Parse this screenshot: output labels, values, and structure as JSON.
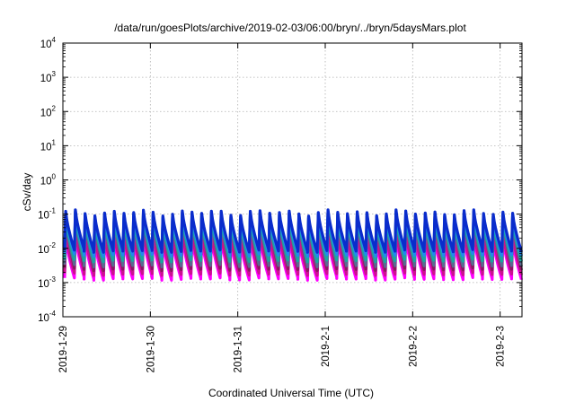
{
  "chart_data": {
    "type": "line",
    "title": "/data/run/goesPlots/archive/2019-02-03/06:00/bryn/../bryn/5daysMars.plot",
    "xlabel": "Coordinated Universal Time (UTC)",
    "ylabel": "cSv/day",
    "x_range": [
      "2019-01-29T00:00",
      "2019-02-03T06:00"
    ],
    "x_ticks": [
      "2019-1-29",
      "2019-1-30",
      "2019-1-31",
      "2019-2-1",
      "2019-2-2",
      "2019-2-3"
    ],
    "y_scale": "log",
    "ylim": [
      0.0001,
      10000
    ],
    "y_ticks": [
      {
        "base": "10",
        "exp": "-4"
      },
      {
        "base": "10",
        "exp": "-3"
      },
      {
        "base": "10",
        "exp": "-2"
      },
      {
        "base": "10",
        "exp": "-1"
      },
      {
        "base": "10",
        "exp": "0"
      },
      {
        "base": "10",
        "exp": "1"
      },
      {
        "base": "10",
        "exp": "2"
      },
      {
        "base": "10",
        "exp": "3"
      },
      {
        "base": "10",
        "exp": "4"
      }
    ],
    "grid": true,
    "cycles_per_day": 9,
    "series": [
      {
        "color": "#0a2ccc",
        "peak": 0.11,
        "trough": 0.0085
      },
      {
        "color": "#2288ee",
        "peak": 0.1,
        "trough": 0.0065
      },
      {
        "color": "#18a8a0",
        "peak": 0.08,
        "trough": 0.0045
      },
      {
        "color": "#5a6a90",
        "peak": 0.07,
        "trough": 0.0032
      },
      {
        "color": "#8a1860",
        "peak": 0.095,
        "trough": 0.0025
      },
      {
        "color": "#cc1090",
        "peak": 0.03,
        "trough": 0.0018
      },
      {
        "color": "#ff00ff",
        "peak": 0.02,
        "trough": 0.0013
      }
    ]
  }
}
